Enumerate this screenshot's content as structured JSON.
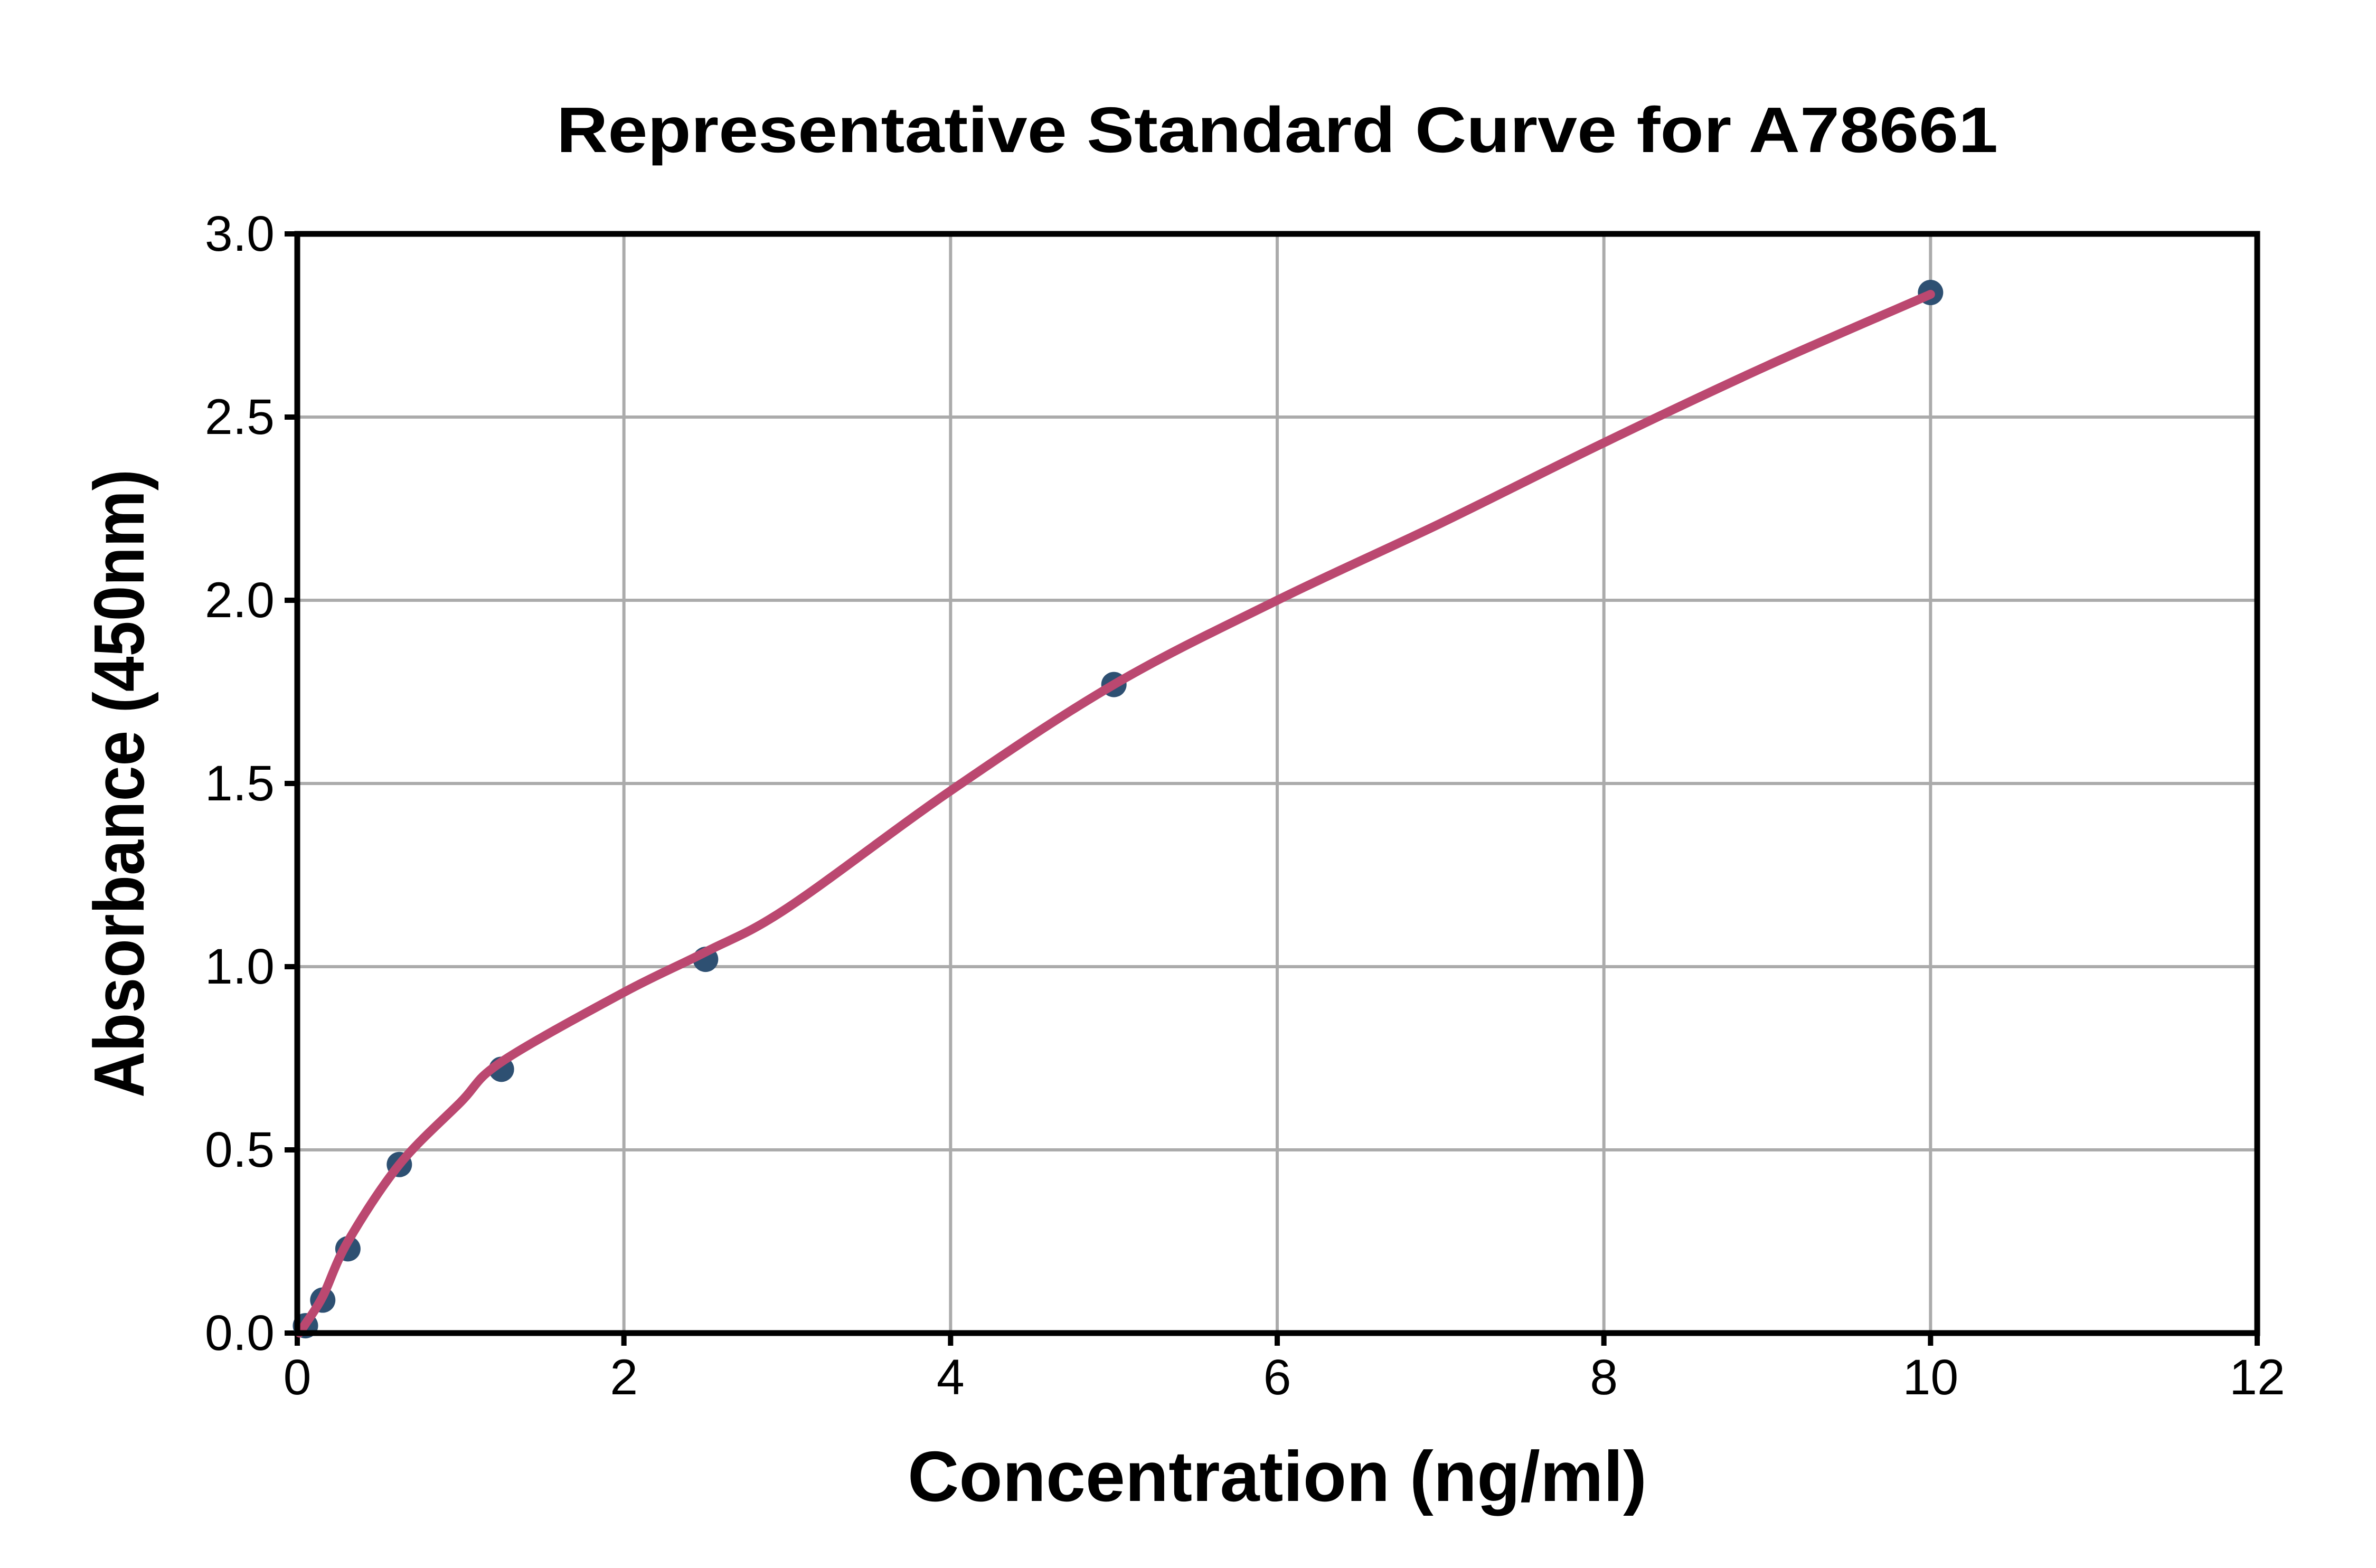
{
  "chart_data": {
    "type": "scatter",
    "title": "Representative Standard Curve for A78661",
    "xlabel": "Concentration (ng/ml)",
    "ylabel": "Absorbance (450nm)",
    "xlim": [
      0,
      12
    ],
    "ylim": [
      0,
      3.0
    ],
    "x_ticks": [
      0,
      2,
      4,
      6,
      8,
      10,
      12
    ],
    "x_tick_labels": [
      "0",
      "2",
      "4",
      "6",
      "8",
      "10",
      "12"
    ],
    "y_ticks": [
      0,
      0.5,
      1.0,
      1.5,
      2.0,
      2.5,
      3.0
    ],
    "y_tick_labels": [
      "0.0",
      "0.5",
      "1.0",
      "1.5",
      "2.0",
      "2.5",
      "3.0"
    ],
    "grid": true,
    "legend_position": "none",
    "points": [
      {
        "x": 0.05,
        "y": 0.02
      },
      {
        "x": 0.156,
        "y": 0.09
      },
      {
        "x": 0.31,
        "y": 0.23
      },
      {
        "x": 0.625,
        "y": 0.46
      },
      {
        "x": 1.25,
        "y": 0.72
      },
      {
        "x": 2.5,
        "y": 1.02
      },
      {
        "x": 5.0,
        "y": 1.77
      },
      {
        "x": 10.0,
        "y": 2.84
      }
    ],
    "fit_curve_samples": [
      [
        0.013,
        0.0
      ],
      [
        0.05,
        0.025
      ],
      [
        0.156,
        0.1
      ],
      [
        0.31,
        0.25
      ],
      [
        0.625,
        0.46
      ],
      [
        1.0,
        0.63
      ],
      [
        1.25,
        0.74
      ],
      [
        2.0,
        0.93
      ],
      [
        2.5,
        1.04
      ],
      [
        3.0,
        1.16
      ],
      [
        4.0,
        1.48
      ],
      [
        5.0,
        1.77
      ],
      [
        6.0,
        2.0
      ],
      [
        7.0,
        2.21
      ],
      [
        8.0,
        2.43
      ],
      [
        9.0,
        2.64
      ],
      [
        10.0,
        2.835
      ]
    ],
    "colors": {
      "curve": "#bb4870",
      "marker": "#2e5072",
      "grid": "#ababab",
      "spine": "#000000",
      "text": "#000000",
      "background": "#ffffff"
    }
  }
}
